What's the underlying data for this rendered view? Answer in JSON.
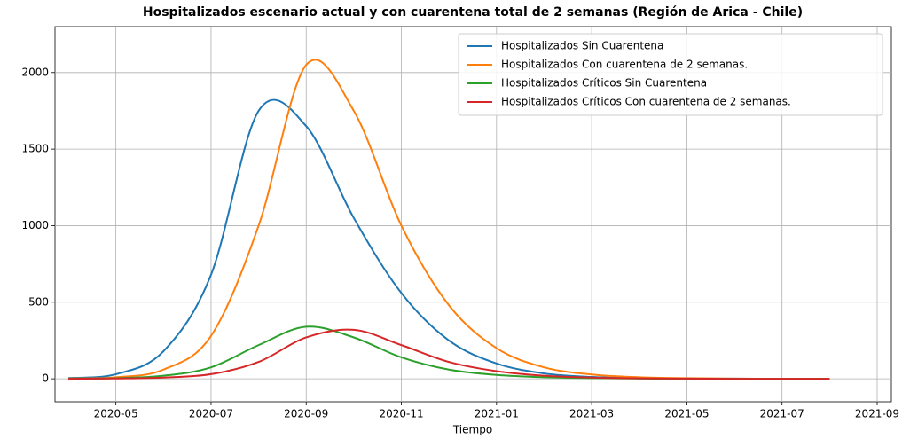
{
  "chart_data": {
    "type": "line",
    "title": "Hospitalizados escenario actual y con cuarentena total de 2 semanas (Región de Arica - Chile)",
    "xlabel": "Tiempo",
    "x": [
      "2020-04",
      "2020-05",
      "2020-06",
      "2020-07",
      "2020-08",
      "2020-09",
      "2020-10",
      "2020-11",
      "2020-12",
      "2021-01",
      "2021-02",
      "2021-03",
      "2021-04",
      "2021-05",
      "2021-06",
      "2021-07",
      "2021-08"
    ],
    "series": [
      {
        "name": "Hospitalizados Sin Cuarentena",
        "color": "#1f77b4",
        "values": [
          5,
          30,
          180,
          680,
          1750,
          1650,
          1050,
          560,
          250,
          100,
          35,
          12,
          5,
          2,
          1,
          0,
          0
        ]
      },
      {
        "name": "Hospitalizados Con cuarentena de 2 semanas.",
        "color": "#ff7f0e",
        "values": [
          2,
          10,
          60,
          280,
          1000,
          2050,
          1750,
          1000,
          480,
          200,
          75,
          28,
          10,
          4,
          1,
          0,
          0
        ]
      },
      {
        "name": "Hospitalizados Críticos Sin Cuarentena",
        "color": "#2ca02c",
        "values": [
          1,
          4,
          20,
          75,
          220,
          340,
          270,
          140,
          60,
          25,
          10,
          4,
          1,
          0,
          0,
          0,
          0
        ]
      },
      {
        "name": "Hospitalizados Críticos Con cuarentena de 2 semanas.",
        "color": "#d62728",
        "values": [
          0,
          2,
          8,
          30,
          110,
          270,
          320,
          220,
          110,
          50,
          20,
          8,
          3,
          1,
          0,
          0,
          0
        ]
      }
    ],
    "xlim": [
      "2020-04",
      "2021-09"
    ],
    "xticks": [
      "2020-05",
      "2020-07",
      "2020-09",
      "2020-11",
      "2021-01",
      "2021-03",
      "2021-05",
      "2021-07",
      "2021-09"
    ],
    "ylim": [
      -150,
      2300
    ],
    "yticks": [
      0,
      500,
      1000,
      1500,
      2000
    ],
    "grid": true,
    "legend": "upper right"
  }
}
